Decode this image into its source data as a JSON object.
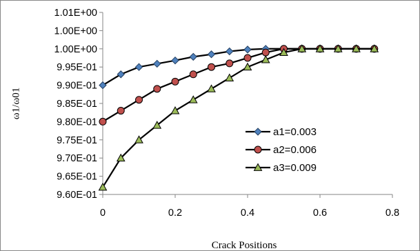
{
  "chart_data": {
    "type": "line",
    "title": "",
    "xlabel": "Crack Positions",
    "ylabel": "ω1/ω01",
    "xlim": [
      0,
      0.8
    ],
    "ylim": [
      0.96,
      1.01
    ],
    "x_ticks": [
      0,
      0.2,
      0.4,
      0.6,
      0.8
    ],
    "x_tick_labels": [
      "0",
      "0.2",
      "0.4",
      "0.6",
      "0.8"
    ],
    "y_ticks": [
      0.96,
      0.965,
      0.97,
      0.975,
      0.98,
      0.985,
      0.99,
      0.995,
      1.0,
      1.005,
      1.01
    ],
    "y_tick_labels": [
      "9.60E-01",
      "9.65E-01",
      "9.70E-01",
      "9.75E-01",
      "9.80E-01",
      "9.85E-01",
      "9.90E-01",
      "9.95E-01",
      "1.00E+00",
      "1.00E+00",
      "1.01E+00"
    ],
    "grid": false,
    "legend_position": "center-right",
    "x": [
      0,
      0.05,
      0.1,
      0.15,
      0.2,
      0.25,
      0.3,
      0.35,
      0.4,
      0.45,
      0.5,
      0.55,
      0.6,
      0.65,
      0.7,
      0.75
    ],
    "series": [
      {
        "name": "a1=0.003",
        "marker": "diamond",
        "color": "#4F81BD",
        "values": [
          0.99,
          0.993,
          0.995,
          0.9959,
          0.9968,
          0.9978,
          0.9985,
          0.9993,
          0.9998,
          1.0,
          1.0,
          1.0,
          1.0,
          1.0,
          1.0,
          1.0
        ]
      },
      {
        "name": "a2=0.006",
        "marker": "circle",
        "color": "#C0504D",
        "values": [
          0.98,
          0.983,
          0.986,
          0.989,
          0.991,
          0.993,
          0.995,
          0.996,
          0.9975,
          0.999,
          1.0,
          1.0,
          1.0,
          1.0,
          1.0,
          1.0
        ]
      },
      {
        "name": "a3=0.009",
        "marker": "triangle",
        "color": "#9BBB59",
        "values": [
          0.962,
          0.97,
          0.975,
          0.979,
          0.983,
          0.986,
          0.989,
          0.992,
          0.995,
          0.997,
          0.999,
          1.0,
          1.0,
          1.0,
          1.0,
          1.0
        ]
      }
    ]
  }
}
